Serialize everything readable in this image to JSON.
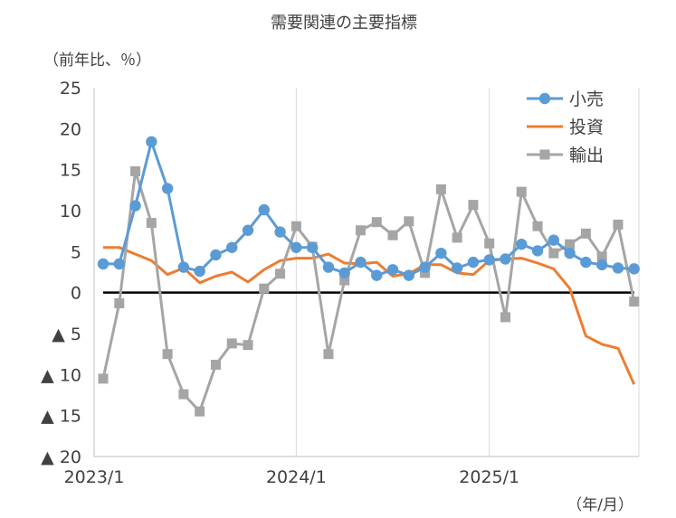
{
  "chart_data": {
    "type": "line",
    "title": "需要関連の主要指標",
    "ylabel": "（前年比、％）",
    "xlabel": "（年/月）",
    "ylim": [
      -20,
      25
    ],
    "yticks": [
      25,
      20,
      15,
      10,
      5,
      0,
      -5,
      -10,
      -15,
      -20
    ],
    "ytick_labels": [
      "25",
      "20",
      "15",
      "10",
      "5",
      "0",
      "▲ 5",
      "▲ 10",
      "▲ 15",
      "▲ 20"
    ],
    "x_categories": [
      "2023/1",
      "2023/2",
      "2023/3",
      "2023/4",
      "2023/5",
      "2023/6",
      "2023/7",
      "2023/8",
      "2023/9",
      "2023/10",
      "2023/11",
      "2023/12",
      "2024/1",
      "2024/2",
      "2024/3",
      "2024/4",
      "2024/5",
      "2024/6",
      "2024/7",
      "2024/8",
      "2024/9",
      "2024/10",
      "2024/11",
      "2024/12",
      "2025/1",
      "2025/2",
      "2025/3",
      "2025/4",
      "2025/5",
      "2025/6",
      "2025/7",
      "2025/8",
      "2025/9",
      "2025/10",
      "2025/11"
    ],
    "xtick_labels": [
      {
        "index": 0,
        "label": "2023/1"
      },
      {
        "index": 12,
        "label": "2024/1"
      },
      {
        "index": 24,
        "label": "2025/1"
      }
    ],
    "grid": {
      "vertical": true,
      "horizontal": false
    },
    "legend": "top-right",
    "series": [
      {
        "name": "小売",
        "color": "#5b9bd5",
        "marker": "circle",
        "values": [
          3.5,
          3.5,
          10.6,
          18.4,
          12.7,
          3.1,
          2.6,
          4.6,
          5.5,
          7.6,
          10.1,
          7.4,
          5.5,
          5.5,
          3.1,
          2.4,
          3.7,
          2.1,
          2.8,
          2.1,
          3.1,
          4.8,
          3.0,
          3.7,
          4.0,
          4.1,
          5.9,
          5.1,
          6.4,
          4.8,
          3.7,
          3.4,
          3.0,
          2.9
        ]
      },
      {
        "name": "投資",
        "color": "#ed7d31",
        "marker": "none",
        "values": [
          5.5,
          5.5,
          4.7,
          3.9,
          2.2,
          3.0,
          1.2,
          2.0,
          2.5,
          1.3,
          2.8,
          3.9,
          4.2,
          4.2,
          4.7,
          3.6,
          3.5,
          3.7,
          2.0,
          2.3,
          3.4,
          3.4,
          2.4,
          2.2,
          3.9,
          4.1,
          4.2,
          3.6,
          2.9,
          0.5,
          -5.3,
          -6.3,
          -6.8,
          -11.2
        ]
      },
      {
        "name": "輸出",
        "color": "#a5a5a5",
        "marker": "square",
        "values": [
          -10.5,
          -1.3,
          14.8,
          8.5,
          -7.5,
          -12.4,
          -14.5,
          -8.8,
          -6.2,
          -6.4,
          0.5,
          2.3,
          8.1,
          5.6,
          -7.5,
          1.5,
          7.6,
          8.6,
          7.0,
          8.7,
          2.4,
          12.6,
          6.7,
          10.7,
          6.0,
          -3.0,
          12.3,
          8.1,
          4.8,
          5.9,
          7.2,
          4.4,
          8.3,
          -1.1
        ]
      }
    ]
  }
}
